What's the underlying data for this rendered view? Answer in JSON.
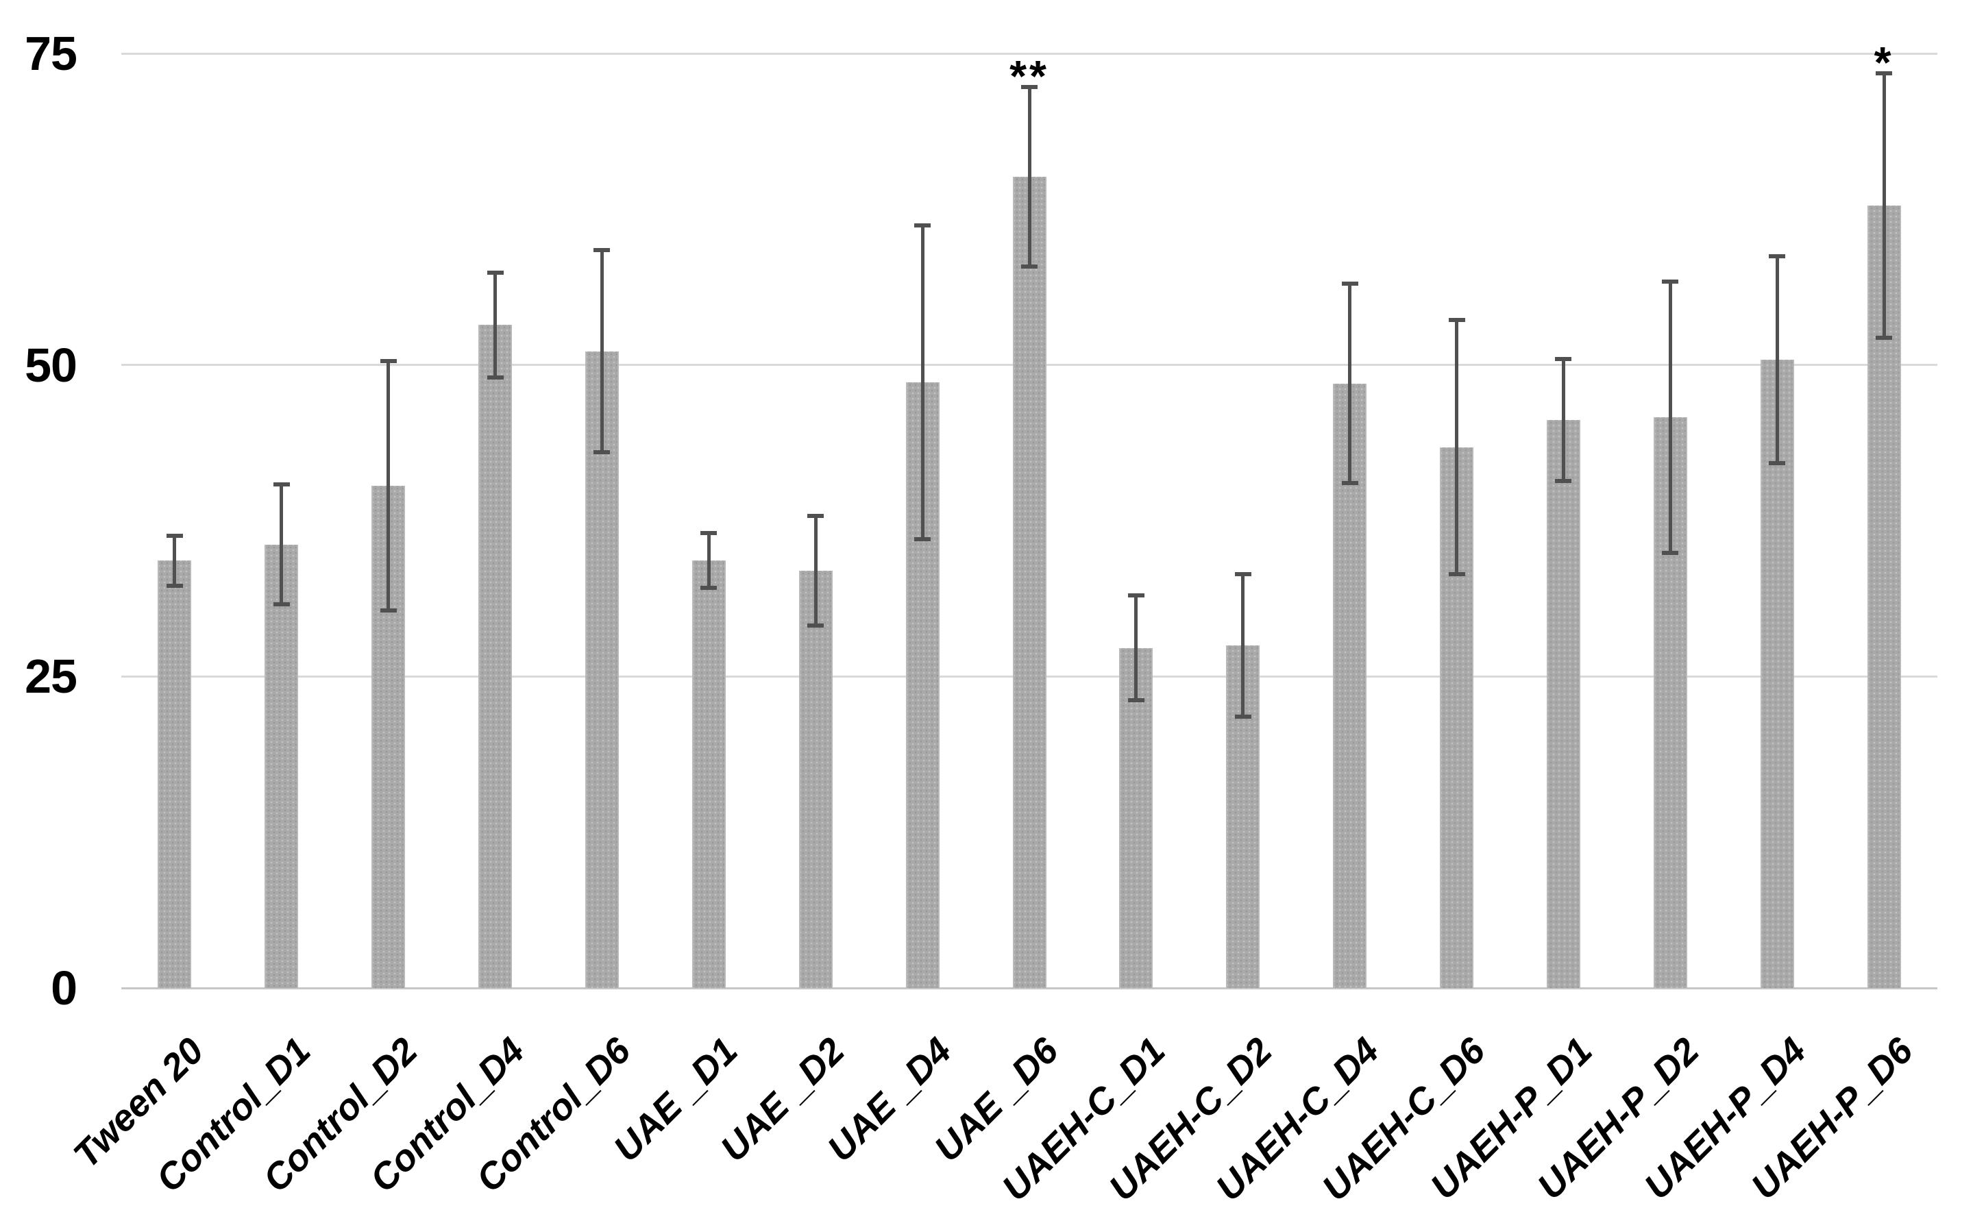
{
  "chart_data": {
    "type": "bar",
    "title": "",
    "xlabel": "",
    "ylabel": "",
    "categories": [
      "Tween 20",
      "Control_D1",
      "Control_D2",
      "Control_D4",
      "Control_D6",
      "UAE _D1",
      "UAE _D2",
      "UAE _D4",
      "UAE _D6",
      "UAEH-C_D1",
      "UAEH-C_D2",
      "UAEH-C_D4",
      "UAEH-C_D6",
      "UAEH-P_D1",
      "UAEH-P_D2",
      "UAEH-P_D4",
      "UAEH-P_D6"
    ],
    "values": [
      34.3,
      35.6,
      40.3,
      53.2,
      51.1,
      34.3,
      33.5,
      48.6,
      65.1,
      27.3,
      27.5,
      48.5,
      43.4,
      45.6,
      45.8,
      50.4,
      62.8
    ],
    "errors": [
      2.0,
      4.8,
      10.0,
      4.2,
      8.1,
      2.2,
      4.4,
      12.6,
      7.2,
      4.2,
      5.7,
      8.0,
      10.2,
      4.9,
      10.9,
      8.3,
      10.6
    ],
    "annotations": [
      "",
      "",
      "",
      "",
      "",
      "",
      "",
      "",
      "**",
      "",
      "",
      "",
      "",
      "",
      "",
      "",
      "*"
    ],
    "ytick_labels": [
      "0",
      "25",
      "50",
      "75"
    ],
    "yticks": [
      0,
      25,
      50,
      75
    ],
    "ylim": [
      0,
      79
    ],
    "grid": "horizontal",
    "legend": "none",
    "colors": {
      "bar": "#a9a9a9",
      "error_bar": "#505050",
      "gridline": "#d9d9d9",
      "baseline": "#c7c7c7",
      "text": "#000000",
      "background": "#ffffff"
    }
  }
}
